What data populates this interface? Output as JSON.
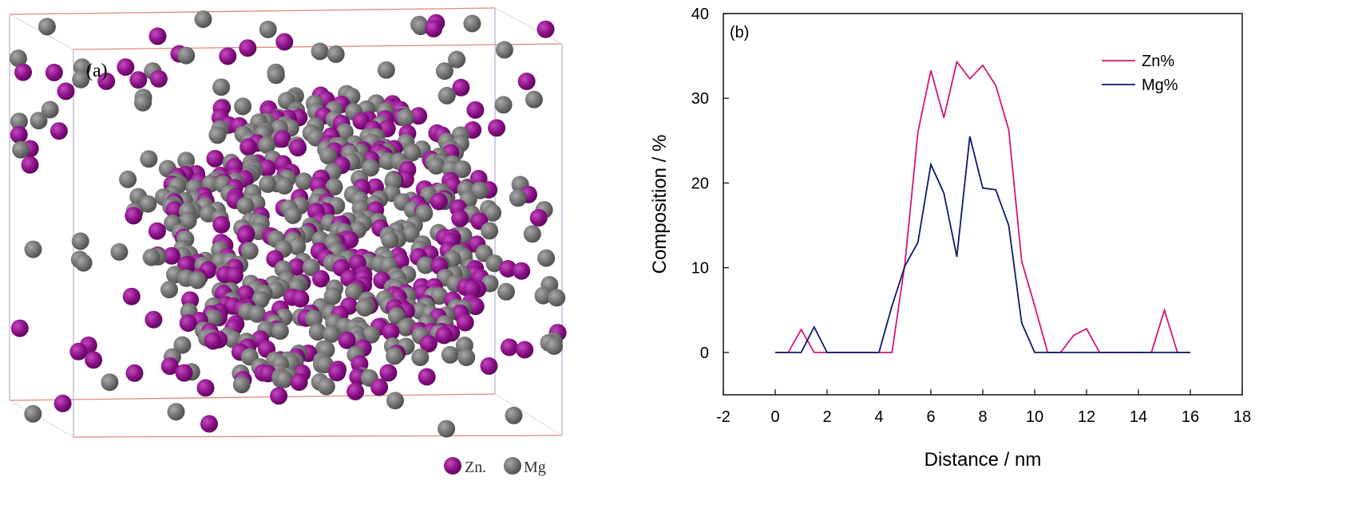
{
  "panel_a": {
    "label": "(a)",
    "legend": [
      {
        "label": "Zn",
        "color": "#8a0f86"
      },
      {
        "label": "Mg",
        "color": "#6e6e6e"
      }
    ]
  },
  "colors": {
    "zn_atom": "#8a0f86",
    "mg_atom": "#707070",
    "zn_line": "#d4157a",
    "mg_line": "#0b1a6e"
  },
  "chart_data": {
    "type": "line",
    "panel_label": "(b)",
    "xlabel": "Distance / nm",
    "ylabel": "Composition / %",
    "xlim": [
      -2,
      18
    ],
    "ylim": [
      -5,
      40
    ],
    "xticks": [
      -2,
      0,
      2,
      4,
      6,
      8,
      10,
      12,
      14,
      16,
      18
    ],
    "yticks": [
      0,
      10,
      20,
      30,
      40
    ],
    "legend_position": "top-right",
    "grid": false,
    "series": [
      {
        "name": "Zn%",
        "color": "#d4157a",
        "x": [
          0,
          0.5,
          1,
          1.5,
          2,
          2.5,
          3,
          3.5,
          4,
          4.5,
          5,
          5.5,
          6,
          6.5,
          7,
          7.5,
          8,
          8.5,
          9,
          9.5,
          10,
          10.5,
          11,
          11.5,
          12,
          12.5,
          13,
          13.5,
          14,
          14.5,
          15,
          15.5,
          16
        ],
        "y": [
          0,
          0,
          2.7,
          0,
          0,
          0,
          0,
          0,
          0,
          0,
          10.5,
          26,
          33.3,
          27.7,
          34.3,
          32.3,
          33.9,
          31.5,
          26.3,
          10.8,
          5.5,
          0,
          0,
          2.0,
          2.8,
          0,
          0,
          0,
          0,
          0,
          5.0,
          0,
          0
        ]
      },
      {
        "name": "Mg%",
        "color": "#0b1a6e",
        "x": [
          0,
          0.5,
          1,
          1.5,
          2,
          2.5,
          3,
          3.5,
          4,
          4.5,
          5,
          5.5,
          6,
          6.5,
          7,
          7.5,
          8,
          8.5,
          9,
          9.5,
          10,
          10.5,
          11,
          11.5,
          12,
          12.5,
          13,
          13.5,
          14,
          14.5,
          15,
          15.5,
          16
        ],
        "y": [
          0,
          0,
          0,
          3.0,
          0,
          0,
          0,
          0,
          0,
          5.5,
          10.2,
          13.0,
          22.2,
          18.8,
          11.3,
          25.5,
          19.4,
          19.2,
          15.0,
          3.5,
          0,
          0,
          0,
          0,
          0,
          0,
          0,
          0,
          0,
          0,
          0,
          0,
          0
        ]
      }
    ]
  }
}
